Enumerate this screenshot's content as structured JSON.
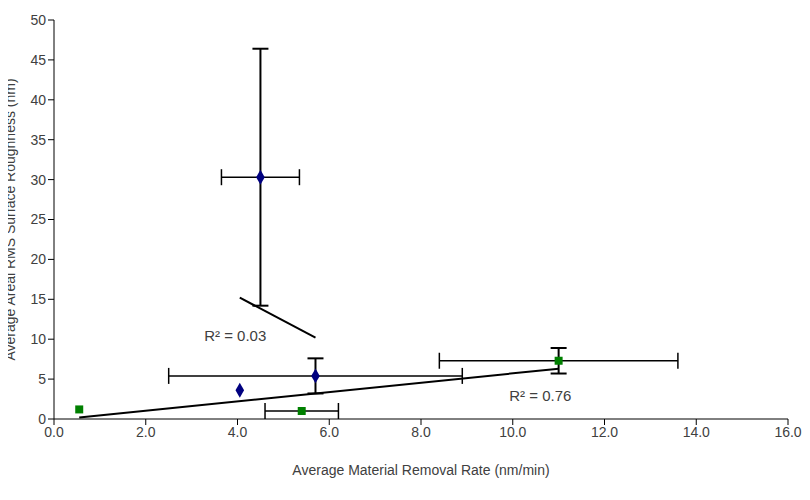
{
  "chart_data": {
    "type": "scatter",
    "xlabel": "Average Material Removal Rate (nm/min)",
    "ylabel": "Average Areal RMS Surface Roughness (nm)",
    "xlim": [
      0,
      16
    ],
    "xticks": [
      {
        "value": 0,
        "label": "0.0"
      },
      {
        "value": 2,
        "label": "2.0"
      },
      {
        "value": 4,
        "label": "4.0"
      },
      {
        "value": 6,
        "label": "6.0"
      },
      {
        "value": 8,
        "label": "8.0"
      },
      {
        "value": 10,
        "label": "10.0"
      },
      {
        "value": 12,
        "label": "12.0"
      },
      {
        "value": 14,
        "label": "14.0"
      },
      {
        "value": 16,
        "label": "16.0"
      }
    ],
    "ylim": [
      0,
      50
    ],
    "yticks": [
      0,
      5,
      10,
      15,
      20,
      25,
      30,
      35,
      40,
      45,
      50
    ],
    "grid": false,
    "series": [
      {
        "type": "scatter",
        "color": "#000080",
        "marker": "diamond",
        "x": [
          4.5,
          5.7,
          4.05
        ],
        "values": [
          30.3,
          5.4,
          3.6
        ],
        "x_error": [
          0.85,
          3.2,
          null
        ],
        "y_error": [
          16.1,
          2.2,
          null
        ]
      },
      {
        "type": "scatter",
        "color": "#008000",
        "marker": "square",
        "x": [
          0.55,
          5.4,
          11.0
        ],
        "values": [
          1.2,
          1.0,
          7.3
        ],
        "x_error": [
          null,
          0.8,
          2.6
        ],
        "y_error": [
          null,
          null,
          1.6
        ]
      },
      {
        "type": "line",
        "color": "#000000",
        "x": [
          4.05,
          5.7
        ],
        "values": [
          15.2,
          10.2
        ]
      },
      {
        "type": "line",
        "color": "#000000",
        "x": [
          0.55,
          11.0
        ],
        "values": [
          0.2,
          6.3
        ]
      }
    ],
    "annotations": [
      {
        "text": "R² = 0.03",
        "x": 3.95,
        "y": 10.5
      },
      {
        "text": "R² = 0.76",
        "x": 10.6,
        "y": 2.9
      }
    ]
  }
}
